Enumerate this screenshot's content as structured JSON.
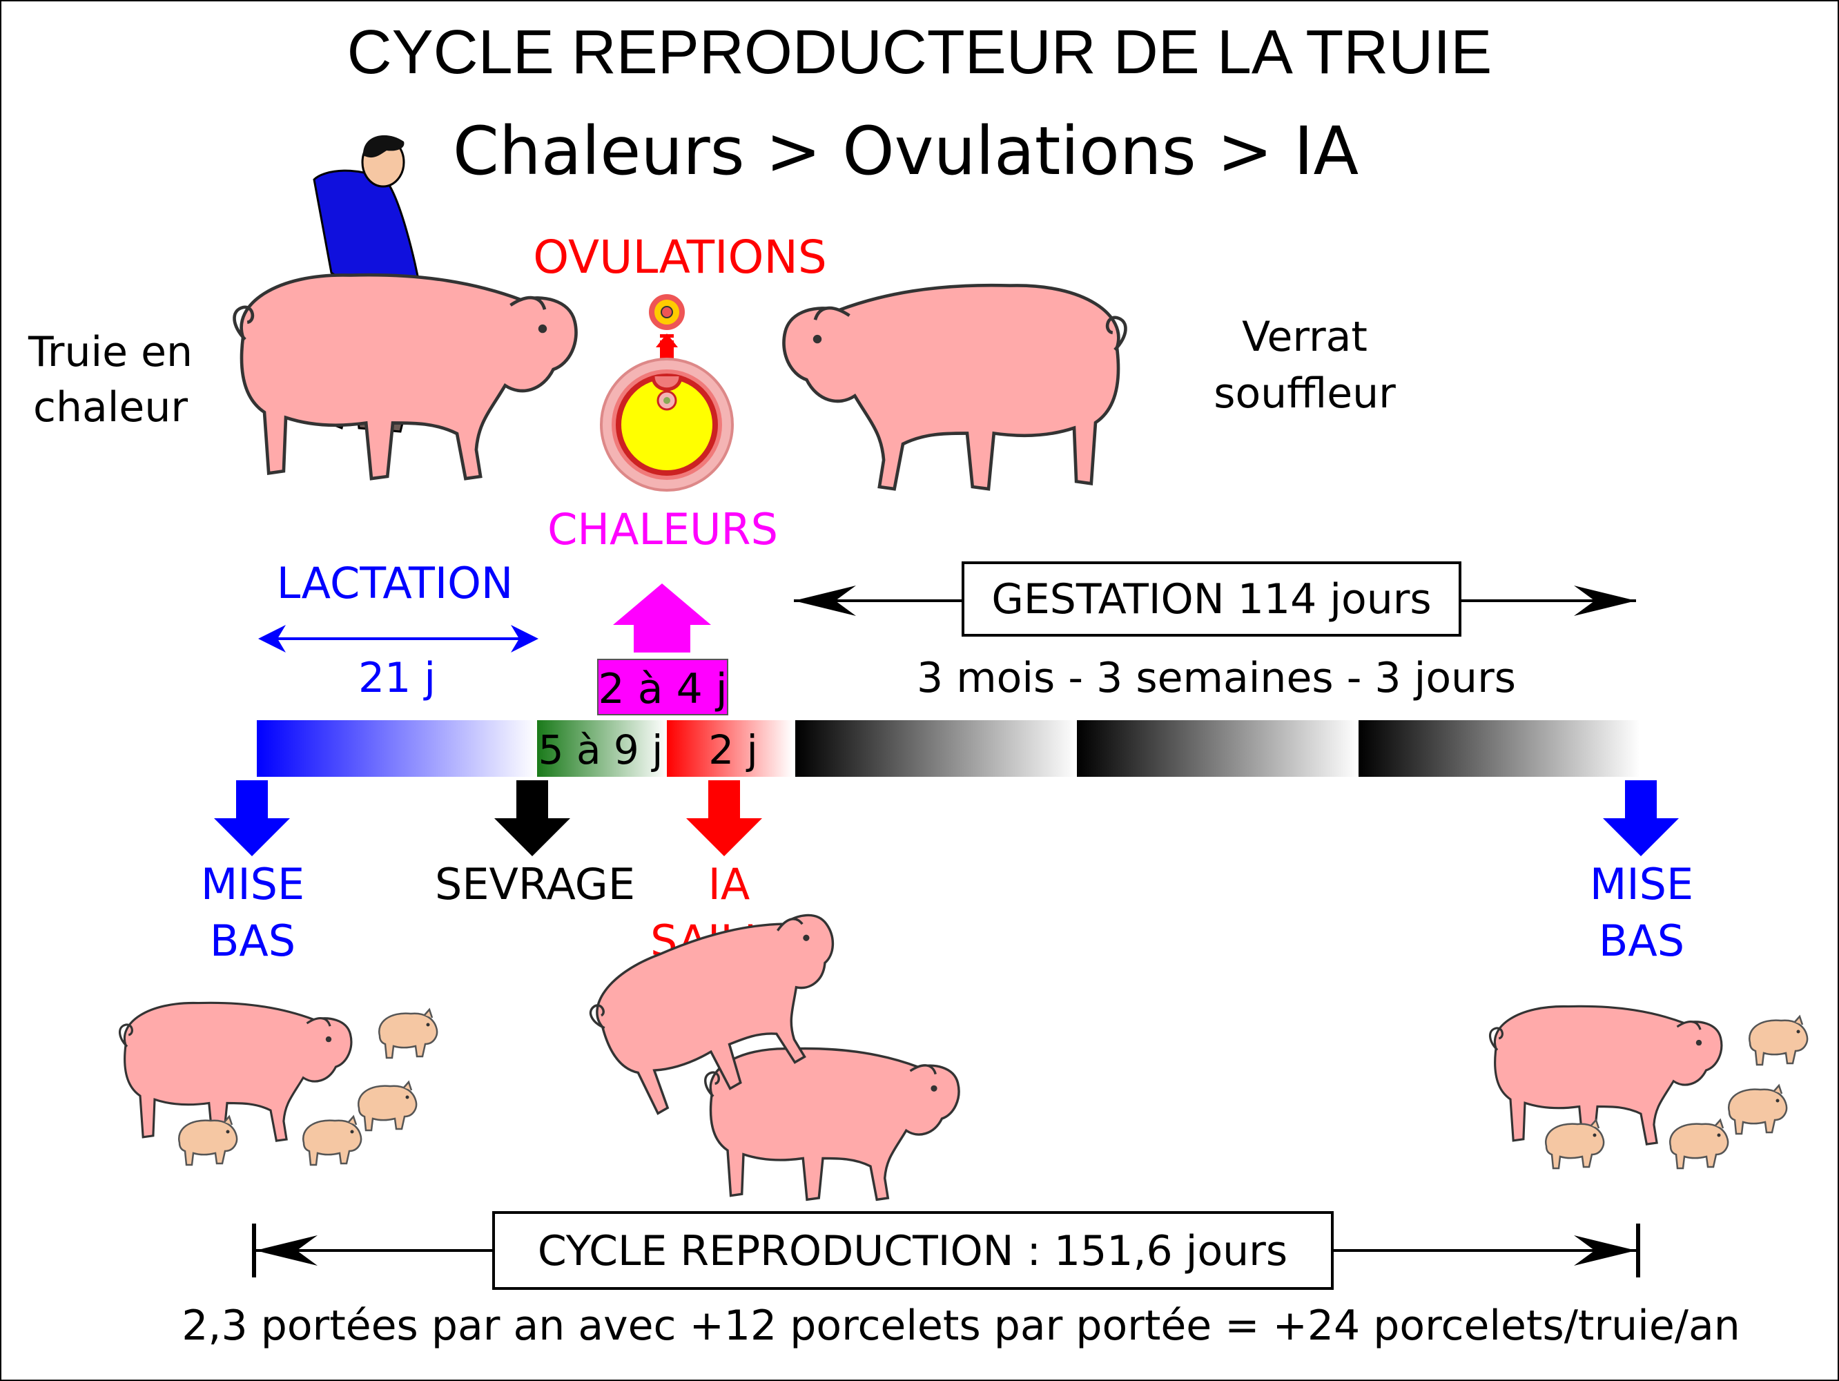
{
  "title": "CYCLE REPRODUCTEUR DE LA TRUIE",
  "subtitle": "Chaleurs > Ovulations > IA",
  "labels": {
    "truie_line1": "Truie en",
    "truie_line2": "chaleur",
    "verrat_line1": "Verrat",
    "verrat_line2": "souffleur",
    "ovulations": "OVULATIONS",
    "chaleurs": "CHALEURS",
    "lactation": "LACTATION",
    "lactation_days": "21 j",
    "chaleurs_days": "2 à 4 j",
    "sevrage_days": "5 à 9 j",
    "ia_days": "2 j",
    "gestation": "GESTATION 114 jours",
    "gestation_detail": "3 mois - 3 semaines - 3 jours",
    "mise_bas_1_line1": "MISE",
    "mise_bas_1_line2": "BAS",
    "sevrage": "SEVRAGE",
    "ia_line1": "IA",
    "ia_line2": "SAILLIE",
    "mise_bas_2_line1": "MISE",
    "mise_bas_2_line2": "BAS",
    "cycle": "CYCLE REPRODUCTION : 151,6 jours",
    "footer": "2,3 portées par an avec +12 porcelets par portée = +24 porcelets/truie/an"
  },
  "colors": {
    "lactation": "#0000ff",
    "chaleurs": "#ff00ff",
    "ovulations": "#ff0000",
    "sevrage_bar": "#1a7a1a",
    "gestation_bar": "#000000",
    "pig_body": "#ffaaaa",
    "piglet": "#f5c7a3",
    "farmer_shirt": "#1010dd"
  },
  "icons": [
    "sow-in-heat-illustration",
    "boar-illustration",
    "follicle-icon",
    "farrowing-sow-illustration",
    "mating-pigs-illustration"
  ]
}
